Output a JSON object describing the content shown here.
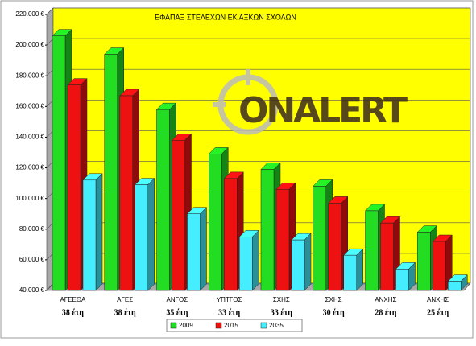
{
  "chart_data": {
    "type": "bar3d",
    "title": "ΕΦΑΠΑΞ ΣΤΕΛΕΧΩΝ ΕΚ ΑΞΚΩΝ ΣΧΟΛΩΝ",
    "watermark": "ONALERT",
    "categories": [
      "ΑΓΕΕΘΑ",
      "ΑΓΕΣ",
      "ΑΝΓΟΣ",
      "ΥΠΤΓΟΣ",
      "ΣΧΗΣ",
      "ΣΧΗΣ",
      "ΑΝΧΗΣ",
      "ΑΝΧΗΣ"
    ],
    "category_years": [
      "38 έτη",
      "38 έτη",
      "35 έτη",
      "33 έτη",
      "33 έτη",
      "30 έτη",
      "28 έτη",
      "25 έτη"
    ],
    "series": [
      {
        "name": "2009",
        "color": "#22dd22",
        "values": [
          206000,
          194000,
          158000,
          129000,
          119000,
          108000,
          92000,
          78000
        ]
      },
      {
        "name": "2015",
        "color": "#ee1111",
        "values": [
          174000,
          167000,
          138000,
          113000,
          106000,
          97000,
          84000,
          72000
        ]
      },
      {
        "name": "2035",
        "color": "#44eeff",
        "values": [
          112000,
          109000,
          90000,
          75000,
          73000,
          63000,
          54000,
          46000
        ]
      }
    ],
    "ylim": [
      40000,
      220000
    ],
    "yticks": [
      {
        "value": 40000,
        "label": "40.000 €"
      },
      {
        "value": 60000,
        "label": "60.000 €"
      },
      {
        "value": 80000,
        "label": "80.000 €"
      },
      {
        "value": 100000,
        "label": "100.000 €"
      },
      {
        "value": 120000,
        "label": "120.000 €"
      },
      {
        "value": 140000,
        "label": "140.000 €"
      },
      {
        "value": 160000,
        "label": "160.000 €"
      },
      {
        "value": 180000,
        "label": "180.000 €"
      },
      {
        "value": 200000,
        "label": "200.000 €"
      },
      {
        "value": 220000,
        "label": "220.000 €"
      }
    ],
    "grid": true,
    "legend": "bottom"
  }
}
